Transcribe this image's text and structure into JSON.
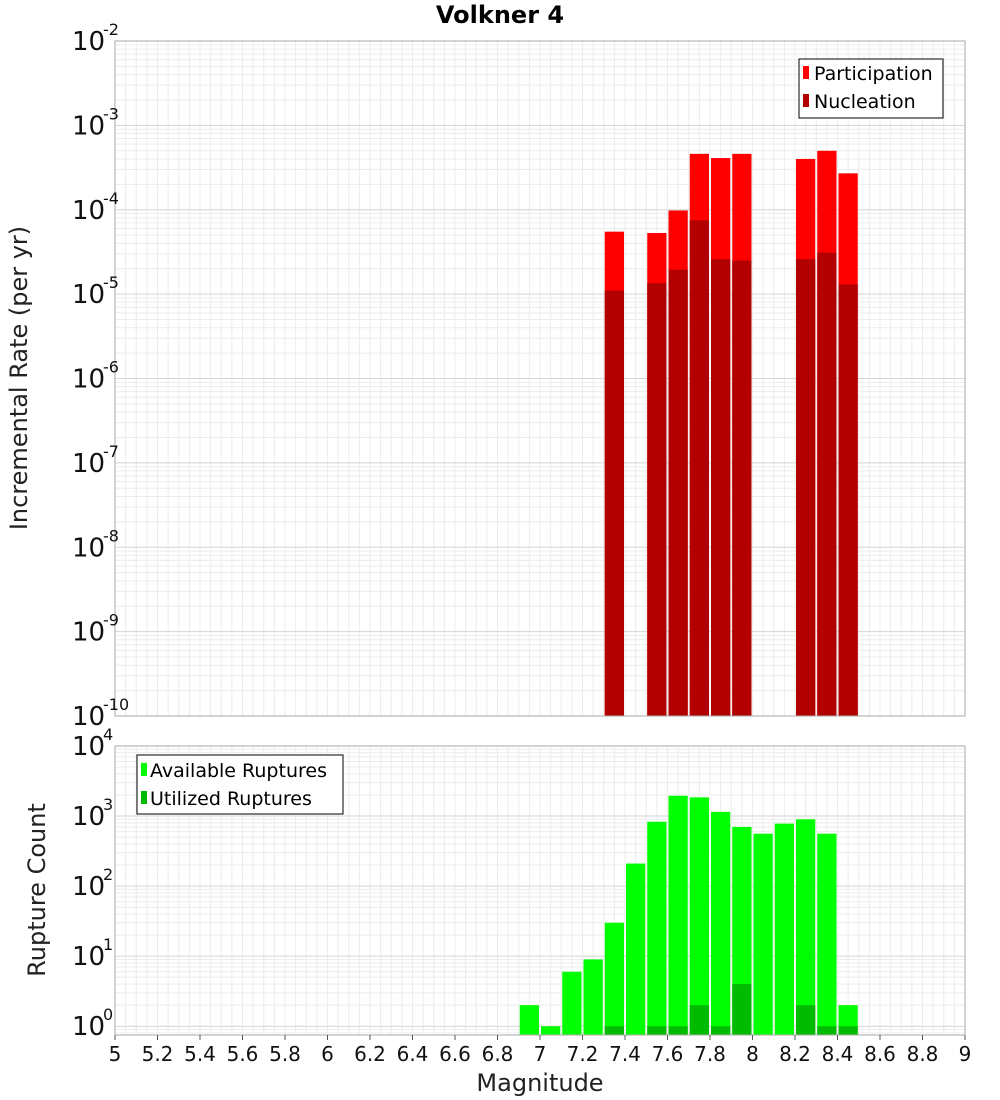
{
  "chart_data": [
    {
      "type": "bar",
      "title": "Volkner 4",
      "ylabel": "Incremental Rate (per yr)",
      "xlabel": "",
      "xlim": [
        5,
        9
      ],
      "ylim": [
        1e-10,
        0.01
      ],
      "yscale": "log",
      "grid": true,
      "legend_position": "top-right",
      "y_tick_exponents": [
        "-10",
        "-9",
        "-8",
        "-7",
        "-6",
        "-5",
        "-4",
        "-3",
        "-2"
      ],
      "x": [
        7.35,
        7.55,
        7.65,
        7.75,
        7.85,
        7.95,
        8.25,
        8.35,
        8.45
      ],
      "series": [
        {
          "name": "Participation",
          "color": "#ff0000",
          "values": [
            5.5e-05,
            5.3e-05,
            9.8e-05,
            0.00046,
            0.00041,
            0.00046,
            0.0004,
            0.0005,
            0.00027
          ]
        },
        {
          "name": "Nucleation",
          "color": "#b20000",
          "values": [
            1.1e-05,
            1.35e-05,
            1.95e-05,
            7.5e-05,
            2.6e-05,
            2.5e-05,
            2.6e-05,
            3.1e-05,
            1.3e-05
          ]
        }
      ]
    },
    {
      "type": "bar",
      "title": "",
      "ylabel": "Rupture Count",
      "xlabel": "Magnitude",
      "xlim": [
        5,
        9
      ],
      "ylim": [
        0.75,
        10000
      ],
      "yscale": "log",
      "grid": true,
      "legend_position": "top-left",
      "x_ticks": [
        "5",
        "5.2",
        "5.4",
        "5.6",
        "5.8",
        "6",
        "6.2",
        "6.4",
        "6.6",
        "6.8",
        "7",
        "7.2",
        "7.4",
        "7.6",
        "7.8",
        "8",
        "8.2",
        "8.4",
        "8.6",
        "8.8",
        "9"
      ],
      "y_tick_exponents": [
        "0",
        "1",
        "2",
        "3",
        "4"
      ],
      "x": [
        6.95,
        7.05,
        7.15,
        7.25,
        7.35,
        7.45,
        7.55,
        7.65,
        7.75,
        7.85,
        7.95,
        8.05,
        8.15,
        8.25,
        8.35,
        8.45
      ],
      "series": [
        {
          "name": "Available Ruptures",
          "color": "#00ff00",
          "values": [
            2,
            1,
            6,
            9,
            30,
            210,
            830,
            1950,
            1850,
            1150,
            700,
            560,
            780,
            900,
            560,
            2
          ]
        },
        {
          "name": "Utilized Ruptures",
          "color": "#00bb00",
          "values": [
            0,
            0,
            0,
            0,
            1,
            0,
            1,
            1,
            2,
            1,
            4,
            0,
            0,
            2,
            1,
            1
          ]
        }
      ]
    }
  ]
}
